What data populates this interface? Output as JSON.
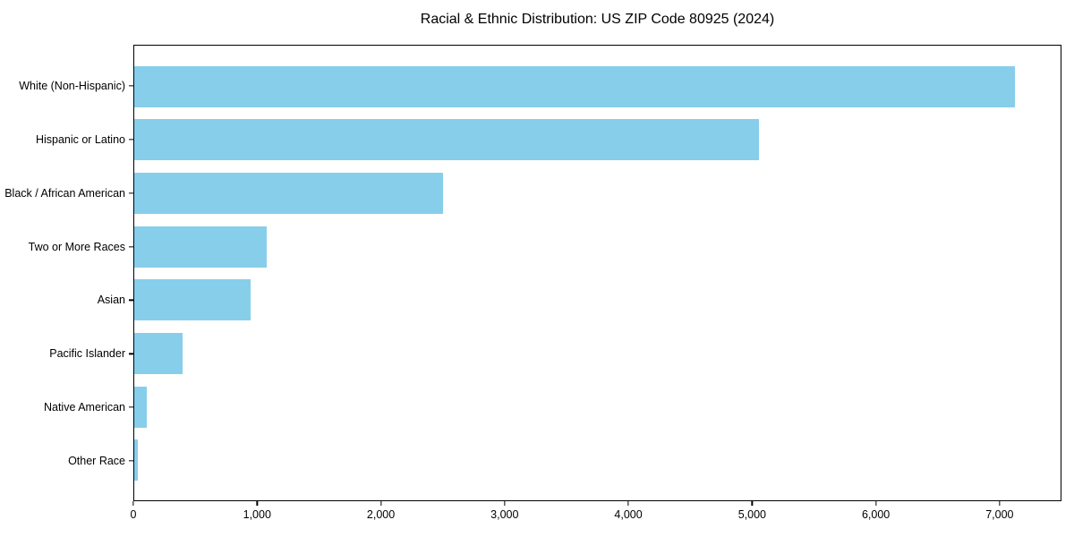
{
  "chart_data": {
    "type": "bar",
    "orientation": "horizontal",
    "title": "Racial & Ethnic Distribution: US ZIP Code 80925 (2024)",
    "categories": [
      "White (Non-Hispanic)",
      "Hispanic or Latino",
      "Black / African American",
      "Two or More Races",
      "Asian",
      "Pacific Islander",
      "Native American",
      "Other Race"
    ],
    "values": [
      7130,
      5060,
      2500,
      1070,
      940,
      390,
      100,
      30
    ],
    "xlabel": "",
    "ylabel": "",
    "xlim": [
      0,
      7500
    ],
    "x_ticks": [
      0,
      1000,
      2000,
      3000,
      4000,
      5000,
      6000,
      7000
    ],
    "x_tick_labels": [
      "0",
      "1,000",
      "2,000",
      "3,000",
      "4,000",
      "5,000",
      "6,000",
      "7,000"
    ],
    "grid": false,
    "legend": false,
    "bar_color": "#87CEEB",
    "axis_color": "#000000",
    "background_color": "#FFFFFF",
    "text_color": "#000000"
  }
}
